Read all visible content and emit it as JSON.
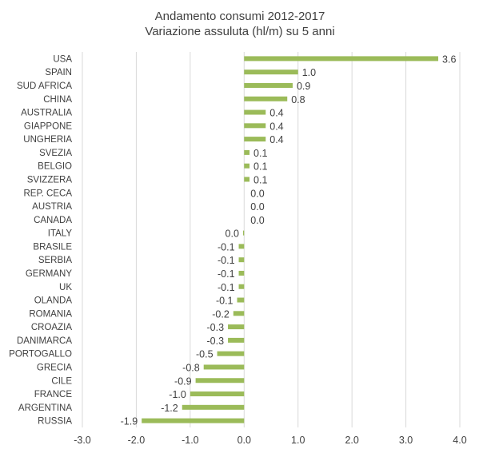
{
  "chart_data": {
    "type": "bar",
    "orientation": "horizontal",
    "title": "Andamento consumi 2012-2017",
    "subtitle": "Variazione assuluta (hl/m) su 5 anni",
    "categories": [
      "USA",
      "SPAIN",
      "SUD AFRICA",
      "CHINA",
      "AUSTRALIA",
      "GIAPPONE",
      "UNGHERIA",
      "SVEZIA",
      "BELGIO",
      "SVIZZERA",
      "REP. CECA",
      "AUSTRIA",
      "CANADA",
      "ITALY",
      "BRASILE",
      "SERBIA",
      "GERMANY",
      "UK",
      "OLANDA",
      "ROMANIA",
      "CROAZIA",
      "DANIMARCA",
      "PORTOGALLO",
      "GRECIA",
      "CILE",
      "FRANCE",
      "ARGENTINA",
      "RUSSIA"
    ],
    "values": [
      3.6,
      1.0,
      0.9,
      0.8,
      0.4,
      0.4,
      0.4,
      0.1,
      0.1,
      0.1,
      0.0,
      0.0,
      0.0,
      -0.02,
      -0.1,
      -0.1,
      -0.1,
      -0.1,
      -0.13,
      -0.2,
      -0.3,
      -0.3,
      -0.5,
      -0.75,
      -0.9,
      -1.0,
      -1.15,
      -1.9
    ],
    "value_labels": [
      "3.6",
      "1.0",
      "0.9",
      "0.8",
      "0.4",
      "0.4",
      "0.4",
      "0.1",
      "0.1",
      "0.1",
      "0.0",
      "0.0",
      "0.0",
      "0.0",
      "-0.1",
      "-0.1",
      "-0.1",
      "-0.1",
      "-0.1",
      "-0.2",
      "-0.3",
      "-0.3",
      "-0.5",
      "-0.8",
      "-0.9",
      "-1.0",
      "-1.2",
      "-1.9"
    ],
    "xlim": [
      -3.0,
      4.0
    ],
    "xticks": [
      "-3.0",
      "-2.0",
      "-1.0",
      "0.0",
      "1.0",
      "2.0",
      "3.0",
      "4.0"
    ],
    "grid": true,
    "bar_color": "#9bbb59"
  }
}
